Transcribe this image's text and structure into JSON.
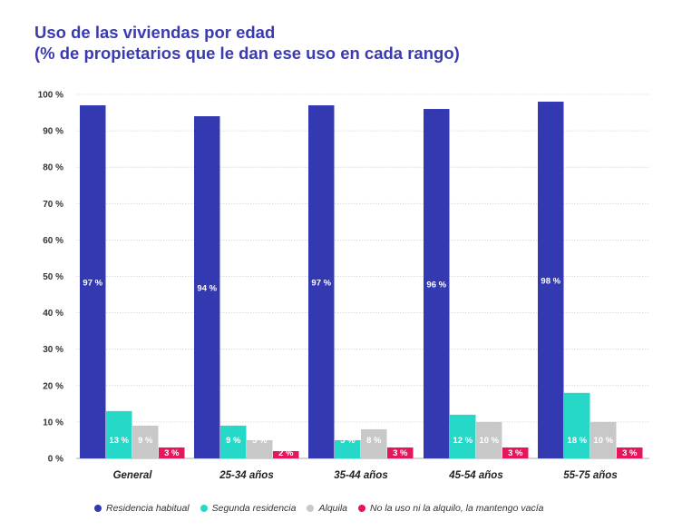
{
  "title_line1": "Uso de las viviendas por edad",
  "title_line2": "(% de propietarios que le dan ese uso en cada rango)",
  "chart_data": {
    "type": "bar",
    "categories": [
      "General",
      "25-34 años",
      "35-44 años",
      "45-54 años",
      "55-75 años"
    ],
    "series": [
      {
        "name": "Residencia habitual",
        "color": "#3339b0",
        "values": [
          97,
          94,
          97,
          96,
          98
        ],
        "labels": [
          "97 %",
          "94 %",
          "97 %",
          "96 %",
          "98 %"
        ]
      },
      {
        "name": "Segunda residencia",
        "color": "#25d8c8",
        "values": [
          13,
          9,
          5,
          12,
          18
        ],
        "labels": [
          "13 %",
          "9 %",
          "5 %",
          "12 %",
          "18 %"
        ]
      },
      {
        "name": "Alquila",
        "color": "#c8c8c8",
        "values": [
          9,
          5,
          8,
          10,
          10
        ],
        "labels": [
          "9 %",
          "5 %",
          "8 %",
          "10 %",
          "10 %"
        ]
      },
      {
        "name": "No la uso ni la alquilo, la mantengo vacía",
        "color": "#e5165e",
        "values": [
          3,
          2,
          3,
          3,
          3
        ],
        "labels": [
          "3 %",
          "2 %",
          "3 %",
          "3 %",
          "3 %"
        ]
      }
    ],
    "yticks": [
      "0 %",
      "10 %",
      "20 %",
      "30 %",
      "40 %",
      "50 %",
      "60 %",
      "70 %",
      "80 %",
      "90 %",
      "100 %"
    ],
    "ylim": [
      0,
      100
    ],
    "grid": true,
    "legend_position": "bottom"
  }
}
